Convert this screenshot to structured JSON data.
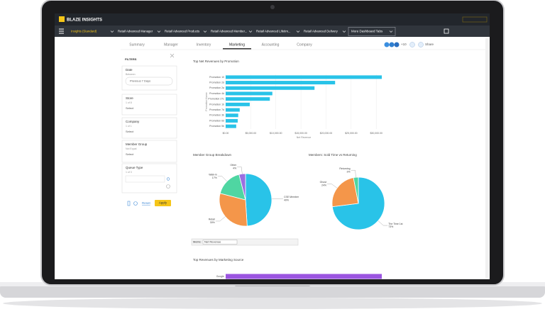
{
  "header": {
    "brand": "BLAZE INSIGHTS"
  },
  "nav": {
    "tabs": [
      "Insights (Standard)",
      "Retail Advanced Manager",
      "Retail Advanced Products",
      "Retail Advanced Member...",
      "Retail Advanced Lifetim...",
      "Retail Advanced Delivery"
    ],
    "active": 0,
    "more": "More Dashboard Tabs"
  },
  "subtabs": {
    "items": [
      "Summary",
      "Manager",
      "Inventory",
      "Marketing",
      "Accounting",
      "Company"
    ],
    "active": 3,
    "share": "Share",
    "users": "+10"
  },
  "filters": {
    "title": "FILTERS",
    "groups": [
      {
        "label": "Date",
        "sub": "Between",
        "control": "Previous 7 Days"
      },
      {
        "label": "Store",
        "sub": "1 of 8",
        "control": "Select"
      },
      {
        "label": "Company",
        "sub": "1 of 1",
        "control": "Select"
      },
      {
        "label": "Member Group",
        "sub": "Not Equal",
        "control": "Select"
      },
      {
        "label": "Queue Type",
        "sub": "1 of 3",
        "control": ""
      }
    ],
    "reset": "Reset",
    "apply": "Apply"
  },
  "metric": {
    "label": "Metric:",
    "value": "Net Revenue"
  },
  "charts": [
    {
      "type": "bar",
      "title": "Top Net Revenues by Promotion",
      "x_label": "Net Revenue",
      "y_label": "Promotion Name",
      "categories": [
        "Promotion 10",
        "Promotion 2d",
        "Promotion 2a",
        "Promotion 4d",
        "Promotion 27c",
        "Promotion 1b",
        "Promotion 7d",
        "Promotion 3b",
        "Promotion 6d",
        "Promotion 5b"
      ],
      "values": [
        31100,
        21800,
        17700,
        9300,
        8800,
        4800,
        2800,
        2500,
        2400,
        2100
      ],
      "color": "#29c3e8",
      "xlim": [
        0,
        31100
      ],
      "xticks": [
        {
          "value": 0,
          "label": "$0.00"
        },
        {
          "value": 5000,
          "label": "$5,000.00"
        },
        {
          "value": 10000,
          "label": "$10,000.00"
        },
        {
          "value": 15000,
          "label": "$15,000.00"
        },
        {
          "value": 20000,
          "label": "$20,000.00"
        },
        {
          "value": 25000,
          "label": "$25,000.00"
        },
        {
          "value": 30000,
          "label": "$30,000.00"
        }
      ],
      "grid": true
    },
    {
      "type": "pie",
      "title": "Member Group Breakdown",
      "categories": [
        "CSE Member",
        "Retail",
        "Walk-in",
        "Other"
      ],
      "values": [
        49,
        30,
        17,
        4
      ],
      "value_labels": [
        "49%",
        "30%",
        "17%",
        "4%"
      ],
      "colors": [
        "#29c3e8",
        "#f4964a",
        "#4fd6a2",
        "#9a6fe0"
      ]
    },
    {
      "type": "pie",
      "title": "Members: Sold Time vs Returning",
      "categories": [
        "The Time 1st",
        "Ghost",
        "Returning"
      ],
      "values": [
        73,
        24,
        3
      ],
      "value_labels": [
        "73%",
        "24%",
        "3%"
      ],
      "colors": [
        "#29c3e8",
        "#f4964a",
        "#4fd6a2"
      ]
    },
    {
      "type": "bar",
      "title": "Top Revenues by Marketing Source",
      "categories": [
        "Google"
      ],
      "values": [
        31100
      ],
      "color": "#9b55e0",
      "xlim": [
        0,
        31100
      ]
    }
  ]
}
